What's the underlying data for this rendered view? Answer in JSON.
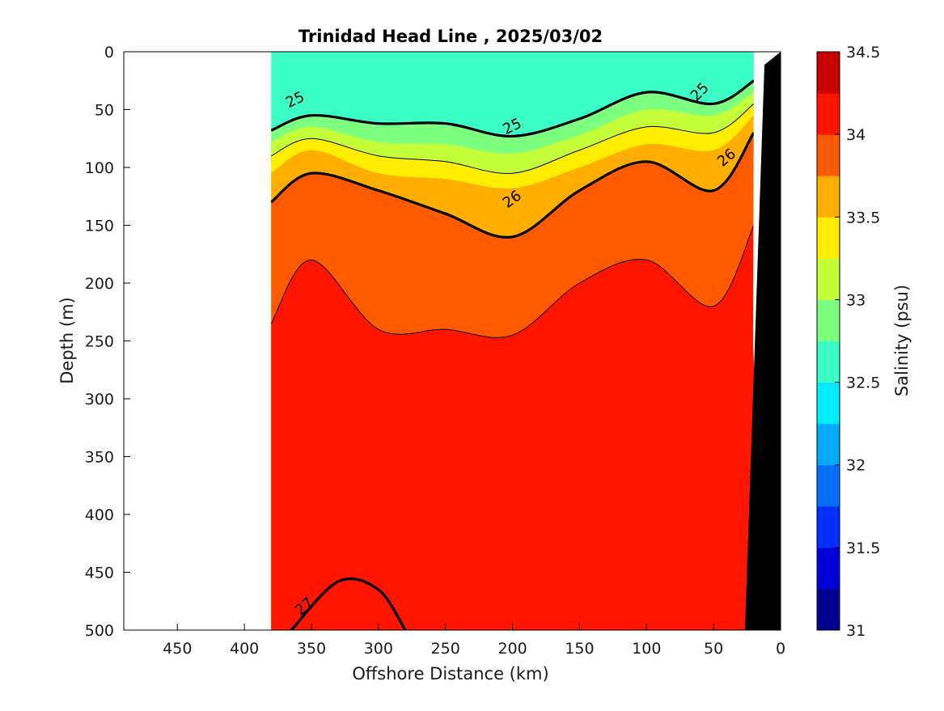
{
  "chart_data": {
    "type": "heatmap",
    "title": "Trinidad Head Line , 2025/03/02",
    "xlabel": "Offshore Distance (km)",
    "ylabel": "Depth (m)",
    "colorbar_label": "Salinity (psu)",
    "xlim": [
      490,
      0
    ],
    "ylim": [
      0,
      500
    ],
    "x_ticks": [
      "450",
      "400",
      "350",
      "300",
      "250",
      "200",
      "150",
      "100",
      "50",
      "0"
    ],
    "y_ticks": [
      "0",
      "50",
      "100",
      "150",
      "200",
      "250",
      "300",
      "350",
      "400",
      "450",
      "500"
    ],
    "colorbar_ticks": [
      "34.5",
      "34",
      "33.5",
      "33",
      "32.5",
      "32",
      "31.5",
      "31"
    ],
    "colorbar_range": [
      31,
      34.5
    ],
    "colorbar_step": 0.25,
    "colorbar_colors": [
      "#00008f",
      "#0000d6",
      "#0030ff",
      "#006fff",
      "#00aaff",
      "#00ecff",
      "#3bffc4",
      "#7dff80",
      "#c5ff3a",
      "#ffee00",
      "#ffae00",
      "#ff5a00",
      "#ff1500",
      "#c90000"
    ],
    "data_extent_km": [
      20,
      380
    ],
    "density_contour_labels": [
      "25",
      "25",
      "25",
      "26",
      "26",
      "27"
    ],
    "salinity_field": {
      "x_km": [
        380,
        350,
        300,
        250,
        200,
        150,
        100,
        50,
        20
      ],
      "layers": [
        {
          "salinity": 32.625,
          "top_depth": [
            0,
            0,
            0,
            0,
            0,
            0,
            0,
            0,
            0
          ]
        },
        {
          "salinity": 32.875,
          "top_depth": [
            68,
            55,
            62,
            62,
            73,
            58,
            35,
            45,
            25
          ]
        },
        {
          "salinity": 33.125,
          "top_depth": [
            78,
            65,
            78,
            80,
            88,
            72,
            50,
            55,
            35
          ]
        },
        {
          "salinity": 33.375,
          "top_depth": [
            90,
            75,
            90,
            95,
            105,
            85,
            65,
            70,
            45
          ]
        },
        {
          "salinity": 33.625,
          "top_depth": [
            105,
            85,
            105,
            110,
            118,
            100,
            80,
            85,
            55
          ]
        },
        {
          "salinity": 33.875,
          "top_depth": [
            130,
            105,
            120,
            140,
            160,
            120,
            95,
            120,
            70
          ]
        },
        {
          "salinity": 34.125,
          "top_depth": [
            235,
            180,
            240,
            240,
            245,
            200,
            180,
            220,
            150
          ]
        }
      ]
    }
  }
}
